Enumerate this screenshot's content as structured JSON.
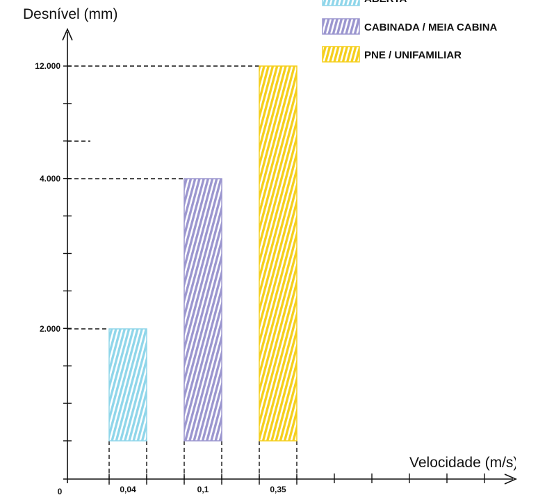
{
  "chart_data": {
    "type": "bar",
    "title": "",
    "ylabel": "Desnível (mm)",
    "xlabel": "Velocidade (m/s)",
    "origin_label": "0",
    "categories": [
      "0,04",
      "0,1",
      "0,35"
    ],
    "values": [
      2000,
      4000,
      12000
    ],
    "y_tick_labels": [
      "2.000",
      "4.000",
      "12.000"
    ],
    "y_scale": "non-uniform (labeled levels only)",
    "grid": false,
    "bar_style": "diagonal hatch",
    "legend_position": "top-right",
    "series": [
      {
        "name": "ABERTA",
        "color": "#8fd6ea",
        "category": "0,04",
        "value": 2000
      },
      {
        "name": "CABINADA / MEIA CABINA",
        "color": "#9b96cf",
        "category": "0,1",
        "value": 4000
      },
      {
        "name": "PNE / UNIFAMILIAR",
        "color": "#f5cf1c",
        "category": "0,35",
        "value": 12000
      }
    ]
  }
}
